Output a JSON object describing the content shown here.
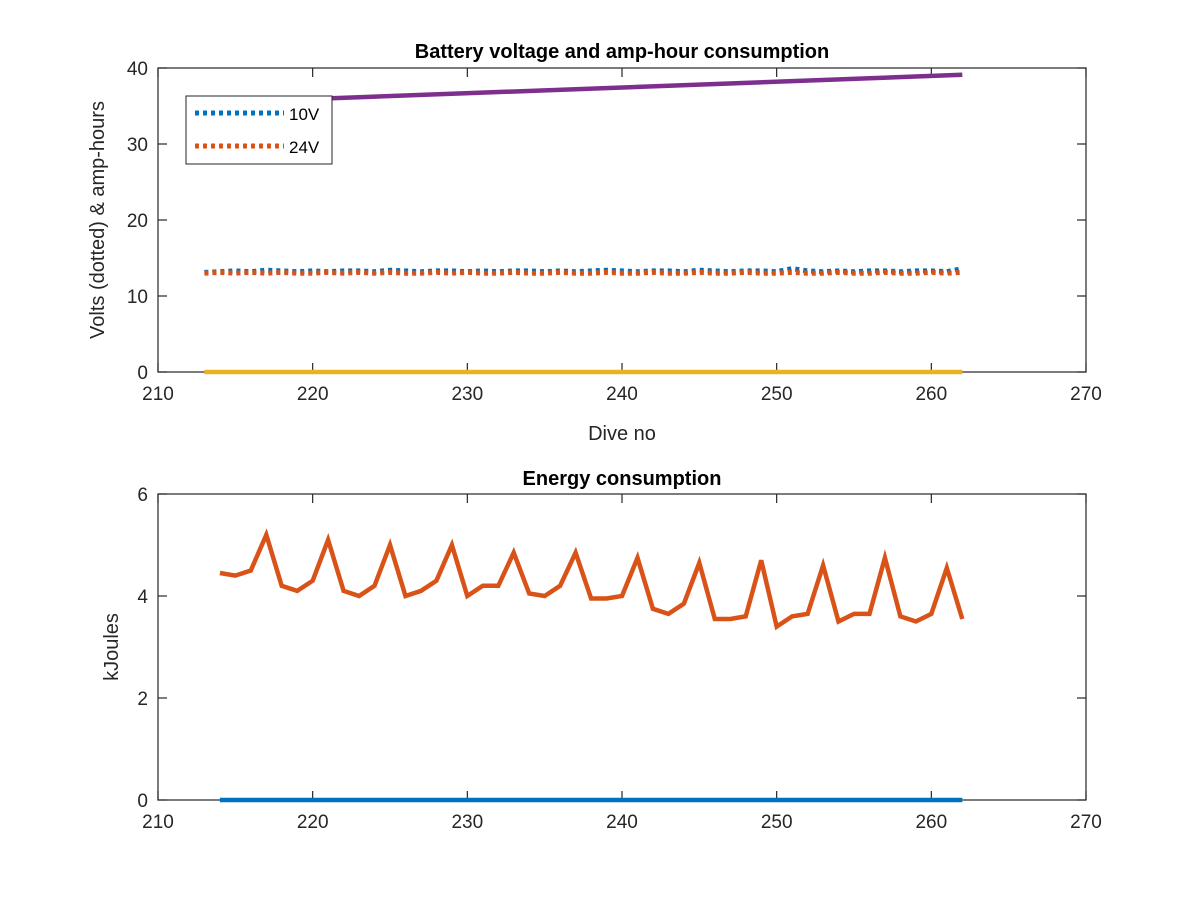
{
  "chart_data": [
    {
      "type": "line",
      "title": "Battery voltage and amp-hour consumption",
      "xlabel": "Dive no",
      "ylabel": "Volts (dotted) & amp-hours",
      "xlim": [
        210,
        270
      ],
      "ylim": [
        0,
        40
      ],
      "xticks": [
        "210",
        "220",
        "230",
        "240",
        "250",
        "260",
        "270"
      ],
      "yticks": [
        "0",
        "10",
        "20",
        "30",
        "40"
      ],
      "legend_position": "top-left",
      "grid": false,
      "series": [
        {
          "name": "10V",
          "style": "dotted",
          "color": "#0072BD",
          "x": [
            213,
            214,
            215,
            216,
            217,
            218,
            219,
            220,
            221,
            222,
            223,
            224,
            225,
            226,
            227,
            228,
            229,
            230,
            231,
            232,
            233,
            234,
            235,
            236,
            237,
            238,
            239,
            240,
            241,
            242,
            243,
            244,
            245,
            246,
            247,
            248,
            249,
            250,
            251,
            252,
            253,
            254,
            255,
            256,
            257,
            258,
            259,
            260,
            261,
            262
          ],
          "y": [
            13.1,
            13.2,
            13.3,
            13.2,
            13.4,
            13.3,
            13.2,
            13.3,
            13.2,
            13.3,
            13.3,
            13.2,
            13.4,
            13.3,
            13.2,
            13.3,
            13.3,
            13.2,
            13.3,
            13.2,
            13.3,
            13.3,
            13.2,
            13.3,
            13.2,
            13.3,
            13.4,
            13.3,
            13.2,
            13.3,
            13.3,
            13.2,
            13.4,
            13.3,
            13.2,
            13.3,
            13.3,
            13.2,
            13.6,
            13.3,
            13.2,
            13.3,
            13.2,
            13.3,
            13.3,
            13.2,
            13.3,
            13.3,
            13.2,
            13.6
          ]
        },
        {
          "name": "24V",
          "style": "dotted",
          "color": "#D95319",
          "x": [
            213,
            214,
            215,
            216,
            217,
            218,
            219,
            220,
            221,
            222,
            223,
            224,
            225,
            226,
            227,
            228,
            229,
            230,
            231,
            232,
            233,
            234,
            235,
            236,
            237,
            238,
            239,
            240,
            241,
            242,
            243,
            244,
            245,
            246,
            247,
            248,
            249,
            250,
            251,
            252,
            253,
            254,
            255,
            256,
            257,
            258,
            259,
            260,
            261,
            262
          ],
          "y": [
            13.0,
            13.1,
            13.0,
            13.1,
            13.0,
            13.1,
            13.0,
            13.0,
            13.1,
            13.0,
            13.1,
            13.0,
            13.1,
            13.0,
            13.0,
            13.1,
            13.0,
            13.1,
            13.0,
            13.0,
            13.1,
            13.0,
            13.0,
            13.1,
            13.0,
            13.0,
            13.1,
            13.0,
            13.0,
            13.1,
            13.0,
            13.0,
            13.1,
            13.0,
            13.0,
            13.1,
            13.0,
            13.0,
            13.1,
            13.0,
            13.0,
            13.1,
            13.0,
            13.0,
            13.1,
            13.0,
            13.0,
            13.1,
            13.0,
            13.1
          ]
        },
        {
          "name": "",
          "style": "solid",
          "color": "#7E2F8E",
          "x": [
            213,
            262
          ],
          "y": [
            35.4,
            39.1
          ]
        },
        {
          "name": "",
          "style": "solid",
          "color": "#EDB120",
          "x": [
            213,
            262
          ],
          "y": [
            0,
            0
          ]
        }
      ]
    },
    {
      "type": "line",
      "title": "Energy consumption",
      "xlabel": "",
      "ylabel": "kJoules",
      "xlim": [
        210,
        270
      ],
      "ylim": [
        0,
        6
      ],
      "xticks": [
        "210",
        "220",
        "230",
        "240",
        "250",
        "260",
        "270"
      ],
      "yticks": [
        "0",
        "2",
        "4",
        "6"
      ],
      "grid": false,
      "series": [
        {
          "name": "",
          "style": "solid",
          "color": "#D95319",
          "x": [
            214,
            215,
            216,
            217,
            218,
            219,
            220,
            221,
            222,
            223,
            224,
            225,
            226,
            227,
            228,
            229,
            230,
            231,
            232,
            233,
            234,
            235,
            236,
            237,
            238,
            239,
            240,
            241,
            242,
            243,
            244,
            245,
            246,
            247,
            248,
            249,
            250,
            251,
            252,
            253,
            254,
            255,
            256,
            257,
            258,
            259,
            260,
            261,
            262
          ],
          "y": [
            4.45,
            4.4,
            4.5,
            5.2,
            4.2,
            4.1,
            4.3,
            5.1,
            4.1,
            4.0,
            4.2,
            5.0,
            4.0,
            4.1,
            4.3,
            5.0,
            4.0,
            4.2,
            4.2,
            4.85,
            4.05,
            4.0,
            4.2,
            4.85,
            3.95,
            3.95,
            4.0,
            4.75,
            3.75,
            3.65,
            3.85,
            4.65,
            3.55,
            3.55,
            3.6,
            4.7,
            3.4,
            3.6,
            3.65,
            4.6,
            3.5,
            3.65,
            3.65,
            4.75,
            3.6,
            3.5,
            3.65,
            4.55,
            3.55
          ]
        },
        {
          "name": "",
          "style": "solid",
          "color": "#0072BD",
          "x": [
            214,
            262
          ],
          "y": [
            0,
            0
          ]
        }
      ]
    }
  ]
}
